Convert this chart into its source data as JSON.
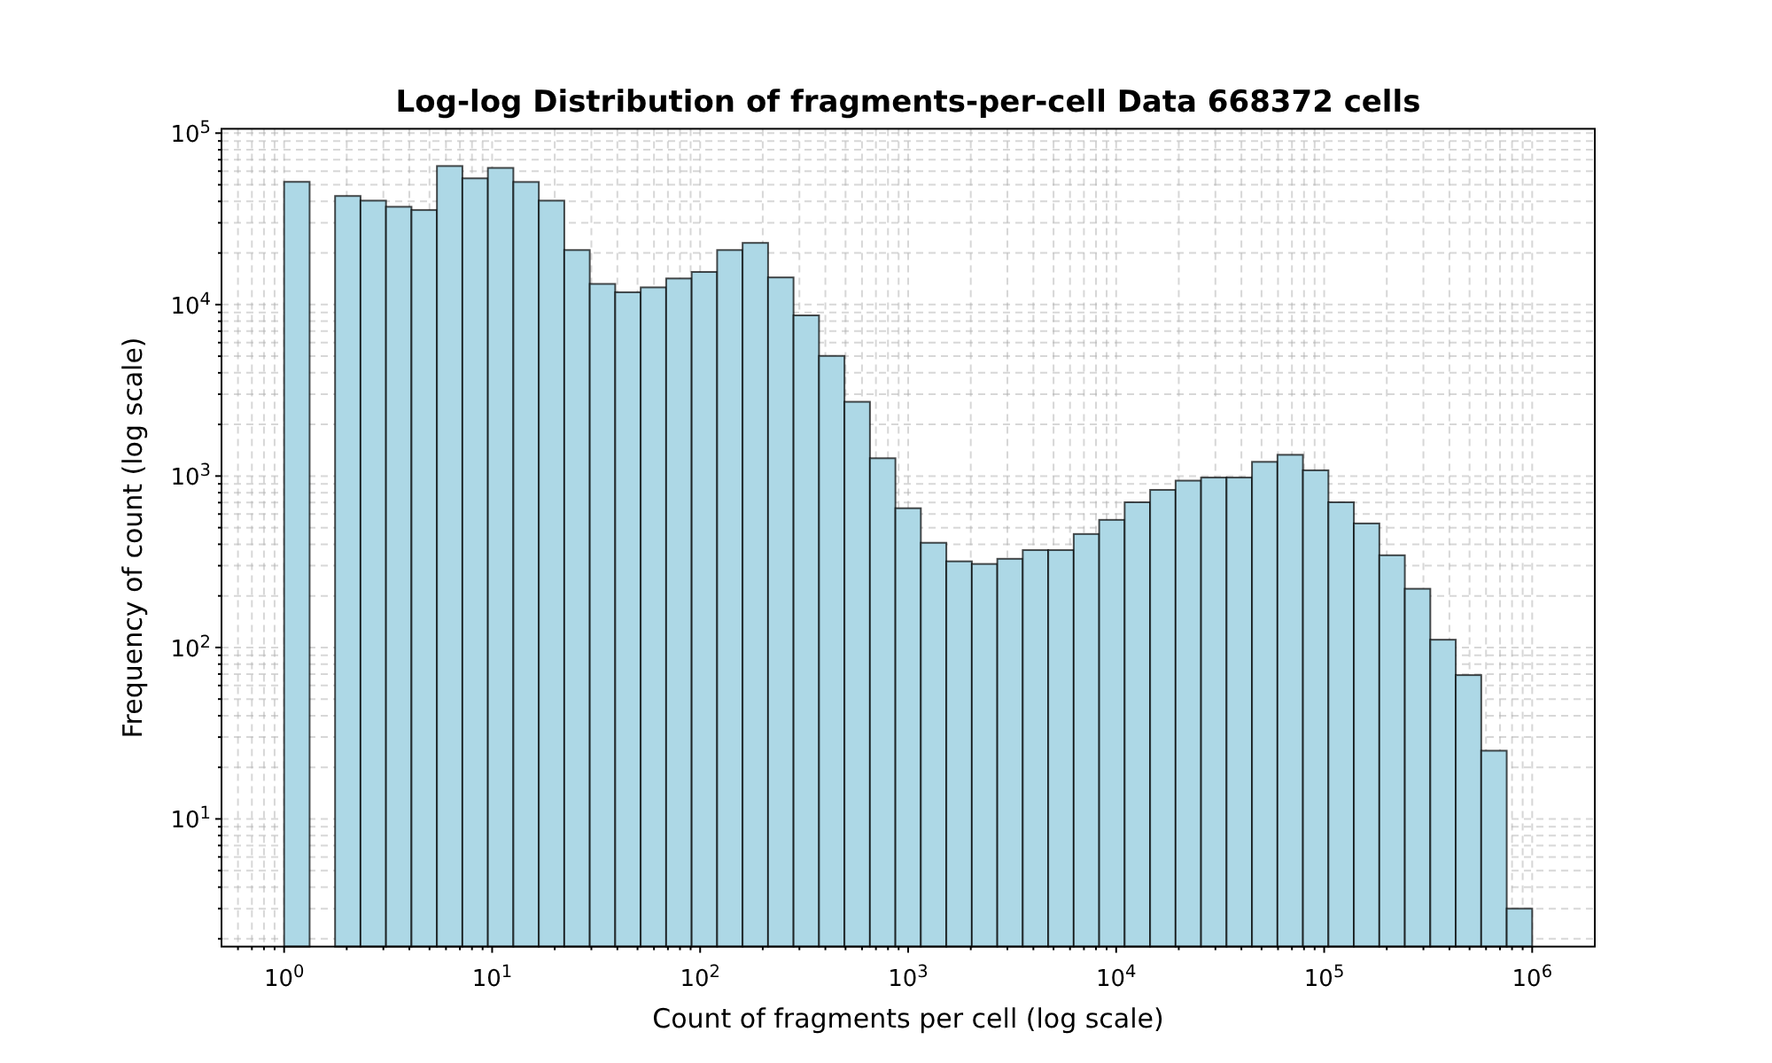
{
  "chart_data": {
    "type": "histogram",
    "title": "Log-log Distribution of fragments-per-cell Data 668372 cells",
    "xlabel": "Count of fragments per cell (log scale)",
    "ylabel": "Frequency of count (log scale)",
    "bins": [
      1,
      1.326,
      1.758,
      2.33,
      3.089,
      4.095,
      5.429,
      7.197,
      9.541,
      12.65,
      16.77,
      22.23,
      29.47,
      39.06,
      51.79,
      68.66,
      91.03,
      120.7,
      160,
      212.1,
      281.2,
      372.8,
      494.2,
      655.1,
      868.5,
      1151,
      1526,
      2024,
      2683,
      3556,
      4715,
      6251,
      8286,
      10985,
      14563,
      19307,
      25595,
      33932,
      44984,
      59636,
      79060,
      104811,
      138950,
      184207,
      244205,
      323746,
      429193,
      568987,
      754312,
      1000000
    ],
    "values": [
      52000,
      null,
      43000,
      40400,
      37200,
      35600,
      64300,
      54500,
      62700,
      51900,
      40400,
      20800,
      13200,
      11800,
      12600,
      14200,
      15500,
      20800,
      22900,
      14400,
      8650,
      5020,
      2710,
      1270,
      649,
      408,
      318,
      307,
      329,
      370,
      370,
      459,
      555,
      703,
      830,
      940,
      980,
      980,
      1210,
      1330,
      1080,
      703,
      529,
      345,
      220,
      111,
      69,
      25,
      3
    ],
    "color": "#add8e6",
    "log": "xy",
    "grid": true,
    "line_style": "dashed",
    "xlim": [
      0.5,
      2000000
    ],
    "ylim": [
      1.8,
      106000
    ],
    "xticks": [
      {
        "value": 0.6,
        "label": null
      },
      {
        "value": 0.7,
        "label": null
      },
      {
        "value": 0.8,
        "label": null
      },
      {
        "value": 0.9,
        "label": null
      },
      {
        "value": 1,
        "label": "10$^{0}$"
      },
      {
        "value": 2,
        "label": null
      },
      {
        "value": 3,
        "label": null
      },
      {
        "value": 4,
        "label": null
      },
      {
        "value": 5,
        "label": null
      },
      {
        "value": 6,
        "label": null
      },
      {
        "value": 7,
        "label": null
      },
      {
        "value": 8,
        "label": null
      },
      {
        "value": 9,
        "label": null
      },
      {
        "value": 10,
        "label": "10$^{1}$"
      },
      {
        "value": 20,
        "label": null
      },
      {
        "value": 30,
        "label": null
      },
      {
        "value": 40,
        "label": null
      },
      {
        "value": 50,
        "label": null
      },
      {
        "value": 60,
        "label": null
      },
      {
        "value": 70,
        "label": null
      },
      {
        "value": 80,
        "label": null
      },
      {
        "value": 90,
        "label": null
      },
      {
        "value": 100,
        "label": "10$^{2}$"
      },
      {
        "value": 200,
        "label": null
      },
      {
        "value": 300,
        "label": null
      },
      {
        "value": 400,
        "label": null
      },
      {
        "value": 500,
        "label": null
      },
      {
        "value": 600,
        "label": null
      },
      {
        "value": 700,
        "label": null
      },
      {
        "value": 800,
        "label": null
      },
      {
        "value": 900,
        "label": null
      },
      {
        "value": 1000,
        "label": "10$^{3}$"
      },
      {
        "value": 2000,
        "label": null
      },
      {
        "value": 3000,
        "label": null
      },
      {
        "value": 4000,
        "label": null
      },
      {
        "value": 5000,
        "label": null
      },
      {
        "value": 6000,
        "label": null
      },
      {
        "value": 7000,
        "label": null
      },
      {
        "value": 8000,
        "label": null
      },
      {
        "value": 9000,
        "label": null
      },
      {
        "value": 10000,
        "label": "10$^{4}$"
      },
      {
        "value": 20000,
        "label": null
      },
      {
        "value": 30000,
        "label": null
      },
      {
        "value": 40000,
        "label": null
      },
      {
        "value": 50000,
        "label": null
      },
      {
        "value": 60000,
        "label": null
      },
      {
        "value": 70000,
        "label": null
      },
      {
        "value": 80000,
        "label": null
      },
      {
        "value": 90000,
        "label": null
      },
      {
        "value": 100000,
        "label": "10$^{5}$"
      },
      {
        "value": 200000,
        "label": null
      },
      {
        "value": 300000,
        "label": null
      },
      {
        "value": 400000,
        "label": null
      },
      {
        "value": 500000,
        "label": null
      },
      {
        "value": 600000,
        "label": null
      },
      {
        "value": 700000,
        "label": null
      },
      {
        "value": 800000,
        "label": null
      },
      {
        "value": 900000,
        "label": null
      },
      {
        "value": 1000000,
        "label": "10$^{6}$"
      }
    ],
    "yticks": [
      {
        "value": 2,
        "label": null
      },
      {
        "value": 3,
        "label": null
      },
      {
        "value": 4,
        "label": null
      },
      {
        "value": 5,
        "label": null
      },
      {
        "value": 6,
        "label": null
      },
      {
        "value": 7,
        "label": null
      },
      {
        "value": 8,
        "label": null
      },
      {
        "value": 9,
        "label": null
      },
      {
        "value": 10,
        "label": "10$^{1}$"
      },
      {
        "value": 20,
        "label": null
      },
      {
        "value": 30,
        "label": null
      },
      {
        "value": 40,
        "label": null
      },
      {
        "value": 50,
        "label": null
      },
      {
        "value": 60,
        "label": null
      },
      {
        "value": 70,
        "label": null
      },
      {
        "value": 80,
        "label": null
      },
      {
        "value": 90,
        "label": null
      },
      {
        "value": 100,
        "label": "10$^{2}$"
      },
      {
        "value": 200,
        "label": null
      },
      {
        "value": 300,
        "label": null
      },
      {
        "value": 400,
        "label": null
      },
      {
        "value": 500,
        "label": null
      },
      {
        "value": 600,
        "label": null
      },
      {
        "value": 700,
        "label": null
      },
      {
        "value": 800,
        "label": null
      },
      {
        "value": 900,
        "label": null
      },
      {
        "value": 1000,
        "label": "10$^{3}$"
      },
      {
        "value": 2000,
        "label": null
      },
      {
        "value": 3000,
        "label": null
      },
      {
        "value": 4000,
        "label": null
      },
      {
        "value": 5000,
        "label": null
      },
      {
        "value": 6000,
        "label": null
      },
      {
        "value": 7000,
        "label": null
      },
      {
        "value": 8000,
        "label": null
      },
      {
        "value": 9000,
        "label": null
      },
      {
        "value": 10000,
        "label": "10$^{4}$"
      },
      {
        "value": 20000,
        "label": null
      },
      {
        "value": 30000,
        "label": null
      },
      {
        "value": 40000,
        "label": null
      },
      {
        "value": 50000,
        "label": null
      },
      {
        "value": 60000,
        "label": null
      },
      {
        "value": 70000,
        "label": null
      },
      {
        "value": 80000,
        "label": null
      },
      {
        "value": 90000,
        "label": null
      },
      {
        "value": 100000,
        "label": "10$^{5}$"
      }
    ]
  }
}
